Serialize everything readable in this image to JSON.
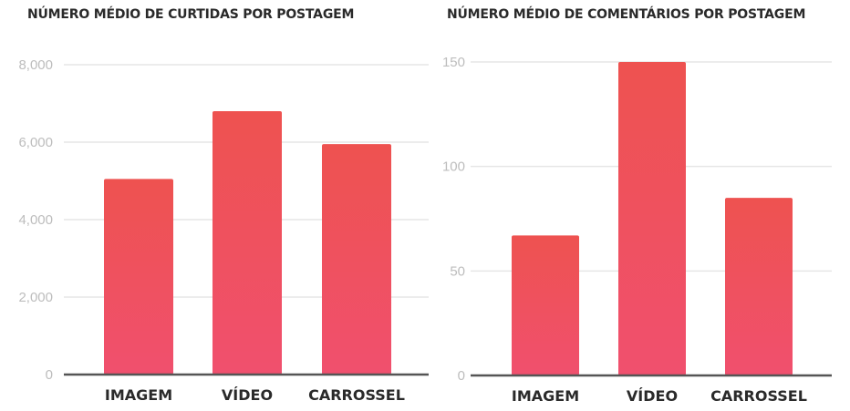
{
  "chart_data": [
    {
      "type": "bar",
      "title": "NÚMERO MÉDIO DE CURTIDAS POR POSTAGEM",
      "categories": [
        "IMAGEM",
        "VÍDEO",
        "CARROSSEL"
      ],
      "values": [
        5050,
        6800,
        5950
      ],
      "yticks": [
        0,
        2000,
        4000,
        6000,
        8000
      ],
      "ytick_labels": [
        "0",
        "2,000",
        "4,000",
        "6,000",
        "8,000"
      ],
      "ylim": [
        0,
        8000
      ],
      "grid": true,
      "bar_color": "#f0506e",
      "bar_color_top": "#ee5250"
    },
    {
      "type": "bar",
      "title": "NÚMERO MÉDIO DE COMENTÁRIOS POR POSTAGEM",
      "categories": [
        "IMAGEM",
        "VÍDEO",
        "CARROSSEL"
      ],
      "values": [
        67,
        150,
        85
      ],
      "yticks": [
        0,
        50,
        100,
        150
      ],
      "ytick_labels": [
        "0",
        "50",
        "100",
        "150"
      ],
      "ylim": [
        0,
        150
      ],
      "grid": true,
      "bar_color": "#f0506e",
      "bar_color_top": "#ee5250"
    }
  ]
}
